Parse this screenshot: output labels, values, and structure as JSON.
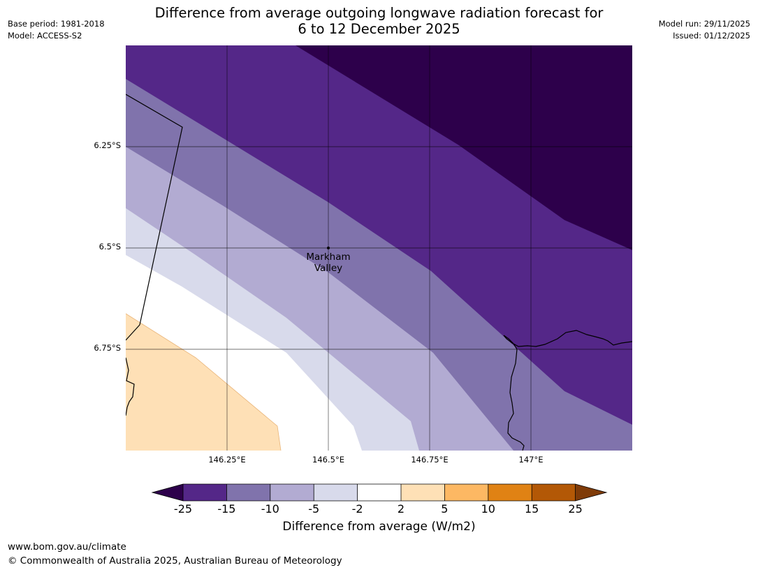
{
  "header": {
    "title_line1": "Difference from average outgoing longwave radiation forecast for",
    "title_line2": "6 to 12 December 2025",
    "base_period": "Base period: 1981-2018",
    "model": "Model: ACCESS-S2",
    "model_run": "Model run: 29/11/2025",
    "issued": "Issued: 01/12/2025"
  },
  "map": {
    "lat_labels": [
      "6.25°S",
      "6.5°S",
      "6.75°S"
    ],
    "lon_labels": [
      "146.25°E",
      "146.5°E",
      "146.75°E",
      "147°E"
    ],
    "place": {
      "name_line1": "Markham",
      "name_line2": "Valley"
    }
  },
  "colorbar": {
    "ticks": [
      "-25",
      "-15",
      "-10",
      "-5",
      "-2",
      "2",
      "5",
      "10",
      "15",
      "25"
    ],
    "colors": [
      "#2d004b",
      "#542788",
      "#8073ac",
      "#b2abd2",
      "#d8daeb",
      "#ffffff",
      "#fee0b6",
      "#fdb863",
      "#e08214",
      "#b35806",
      "#7f3b08"
    ],
    "label": "Difference from average (W/m2)"
  },
  "footer": {
    "url": "www.bom.gov.au/climate",
    "copyright": "© Commonwealth of Australia 2025, Australian Bureau of Meteorology"
  }
}
